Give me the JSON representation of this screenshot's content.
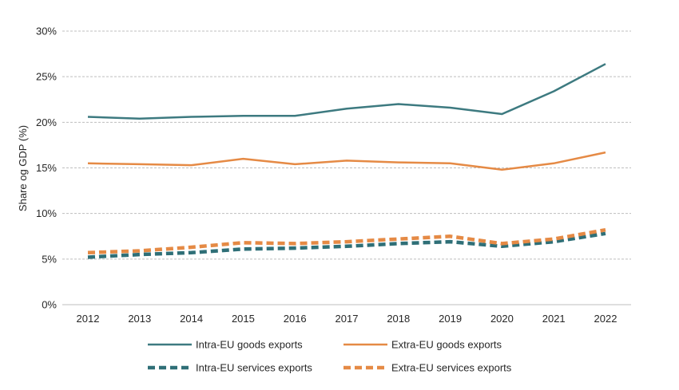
{
  "chart_data": {
    "type": "line",
    "ylabel": "Share og GDP (%)",
    "xlabel": "",
    "ylim": [
      0,
      30
    ],
    "y_ticks": [
      0,
      5,
      10,
      15,
      20,
      25,
      30
    ],
    "y_tick_labels": [
      "0%",
      "5%",
      "10%",
      "15%",
      "20%",
      "25%",
      "30%"
    ],
    "grid": "horizontal-dashed",
    "legend_placement": "bottom",
    "x": [
      "2012",
      "2013",
      "2014",
      "2015",
      "2016",
      "2017",
      "2018",
      "2019",
      "2020",
      "2021",
      "2022"
    ],
    "series": [
      {
        "name": "Intra-EU goods exports",
        "style": "solid",
        "color": "#3d7a80",
        "values": [
          20.6,
          20.4,
          20.6,
          20.7,
          20.7,
          21.5,
          22.0,
          21.6,
          20.9,
          23.4,
          26.4
        ]
      },
      {
        "name": "Extra-EU goods exports",
        "style": "solid",
        "color": "#e58a45",
        "values": [
          15.5,
          15.4,
          15.3,
          16.0,
          15.4,
          15.8,
          15.6,
          15.5,
          14.8,
          15.5,
          16.7
        ]
      },
      {
        "name": "Intra-EU services exports",
        "style": "dashed",
        "color": "#2f6f77",
        "values": [
          5.2,
          5.5,
          5.7,
          6.1,
          6.2,
          6.4,
          6.7,
          6.9,
          6.4,
          6.9,
          7.8
        ]
      },
      {
        "name": "Extra-EU services exports",
        "style": "dashed",
        "color": "#e58a45",
        "values": [
          5.7,
          5.9,
          6.3,
          6.8,
          6.7,
          6.9,
          7.2,
          7.5,
          6.7,
          7.2,
          8.2
        ]
      }
    ]
  }
}
